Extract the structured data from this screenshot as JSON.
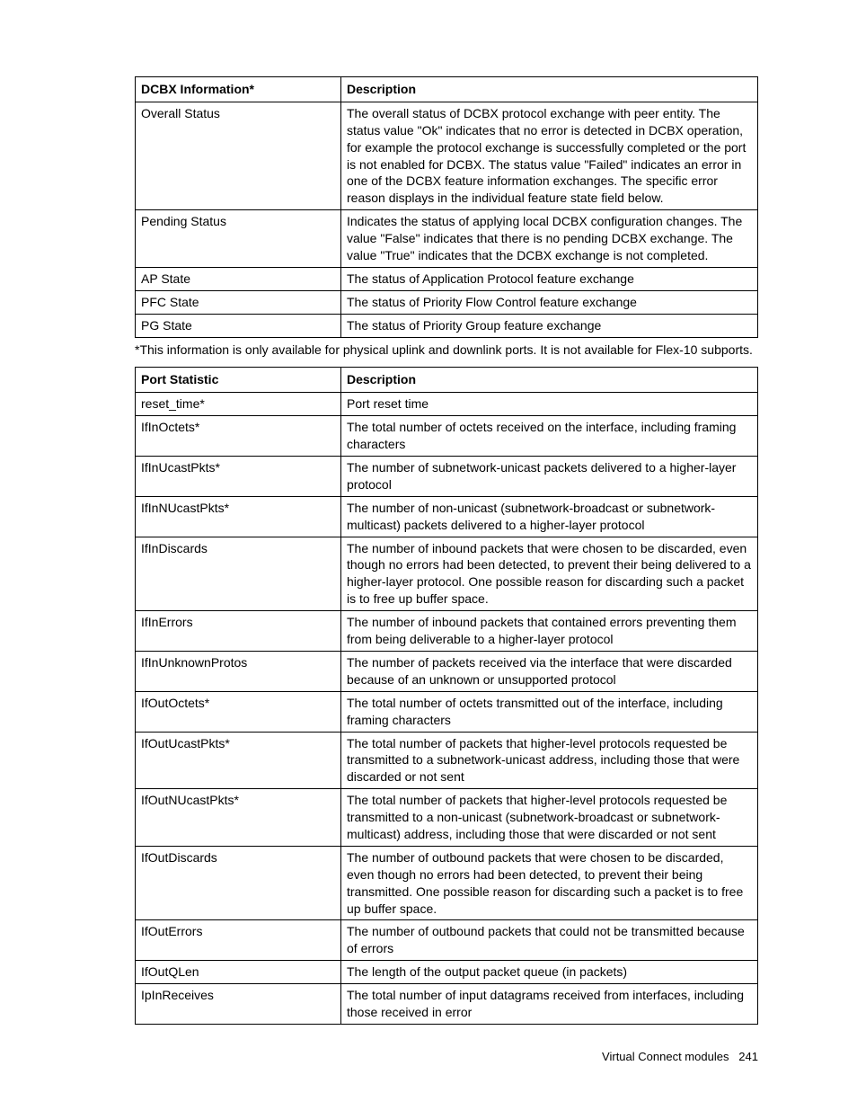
{
  "table_dcbx": {
    "columns": [
      "DCBX Information*",
      "Description"
    ],
    "rows": [
      [
        "Overall Status",
        "The overall status of DCBX protocol exchange with peer entity. The status value \"Ok\" indicates that no error is detected in DCBX operation, for example the protocol exchange is successfully completed or the port is not enabled for DCBX. The status value \"Failed\" indicates an error in one of the DCBX feature information exchanges. The specific error reason displays in the individual feature state field below."
      ],
      [
        "Pending Status",
        "Indicates the status of applying local DCBX configuration changes. The value \"False\" indicates that there is no pending DCBX exchange. The value \"True\" indicates that the DCBX exchange is not completed."
      ],
      [
        "AP State",
        "The status of Application Protocol feature exchange"
      ],
      [
        "PFC State",
        "The status of Priority Flow Control feature exchange"
      ],
      [
        "PG State",
        "The status of Priority Group feature exchange"
      ]
    ]
  },
  "note": "*This information is only available for physical uplink and downlink ports. It is not available for Flex-10 subports.",
  "table_stats": {
    "columns": [
      "Port Statistic",
      "Description"
    ],
    "rows": [
      [
        "reset_time*",
        "Port reset time"
      ],
      [
        "IfInOctets*",
        "The total number of octets received on the interface, including framing characters"
      ],
      [
        "IfInUcastPkts*",
        "The number of subnetwork-unicast packets delivered to a higher-layer protocol"
      ],
      [
        "IfInNUcastPkts*",
        "The number of non-unicast (subnetwork-broadcast or subnetwork-multicast) packets delivered to a higher-layer protocol"
      ],
      [
        "IfInDiscards",
        "The number of inbound packets that were chosen to be discarded, even though no errors had been detected, to prevent their being delivered to a higher-layer protocol. One possible reason for discarding such a packet is to free up buffer space."
      ],
      [
        "IfInErrors",
        "The number of inbound packets that contained errors preventing them from being deliverable to a higher-layer protocol"
      ],
      [
        "IfInUnknownProtos",
        "The number of packets received via the interface that were discarded because of an unknown or unsupported protocol"
      ],
      [
        "IfOutOctets*",
        "The total number of octets transmitted out of the interface, including framing characters"
      ],
      [
        "IfOutUcastPkts*",
        "The total number of packets that higher-level protocols requested be transmitted to a subnetwork-unicast address, including those that were discarded or not sent"
      ],
      [
        "IfOutNUcastPkts*",
        "The total number of packets that higher-level protocols requested be transmitted to a non-unicast (subnetwork-broadcast or subnetwork-multicast) address, including those that were discarded or not sent"
      ],
      [
        "IfOutDiscards",
        "The number of outbound packets that were chosen to be discarded, even though no errors had been detected, to prevent their being transmitted. One possible reason for discarding such a packet is to free up buffer space."
      ],
      [
        "IfOutErrors",
        "The number of outbound packets that could not be transmitted because of errors"
      ],
      [
        "IfOutQLen",
        "The length of the output packet queue (in packets)"
      ],
      [
        "IpInReceives",
        "The total number of input datagrams received from interfaces, including those received in error"
      ]
    ]
  },
  "footer": {
    "section": "Virtual Connect modules",
    "page": "241"
  }
}
